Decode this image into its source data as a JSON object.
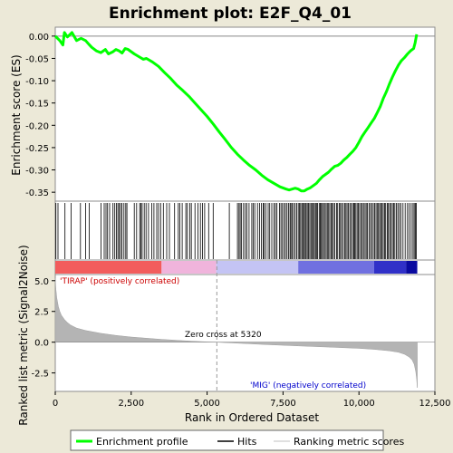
{
  "chart_data": {
    "type": "line",
    "title": "Enrichment plot: E2F_Q4_01",
    "xlabel": "Rank in Ordered Dataset",
    "ylabel_top": "Enrichment score (ES)",
    "ylabel_bottom": "Ranked list metric (Signal2Noise)",
    "x_range": [
      0,
      12500
    ],
    "x_ticks": [
      0,
      2500,
      5000,
      7500,
      10000,
      12500
    ],
    "x_tick_labels": [
      "0",
      "2,500",
      "5,000",
      "7,500",
      "10,000",
      "12,500"
    ],
    "es_ylim": [
      -0.37,
      0.02
    ],
    "es_ticks": [
      0.0,
      -0.05,
      -0.1,
      -0.15,
      -0.2,
      -0.25,
      -0.3,
      -0.35
    ],
    "es_tick_labels": [
      "0.00",
      "-0.05",
      "-0.10",
      "-0.15",
      "-0.20",
      "-0.25",
      "-0.30",
      "-0.35"
    ],
    "metric_ylim": [
      -4.0,
      5.5
    ],
    "metric_ticks": [
      5.0,
      2.5,
      0.0,
      -2.5
    ],
    "metric_tick_labels": [
      "5.0",
      "2.5",
      "0.0",
      "-2.5"
    ],
    "series": [
      {
        "name": "Enrichment profile",
        "color": "#00ff00",
        "x": [
          0,
          150,
          250,
          300,
          400,
          550,
          700,
          850,
          1000,
          1100,
          1200,
          1350,
          1500,
          1650,
          1750,
          1900,
          2000,
          2100,
          2200,
          2300,
          2400,
          2600,
          2800,
          2900,
          3000,
          3200,
          3400,
          3600,
          3800,
          4000,
          4200,
          4400,
          4600,
          4800,
          5000,
          5200,
          5400,
          5600,
          5800,
          6000,
          6200,
          6400,
          6600,
          6800,
          7000,
          7200,
          7400,
          7600,
          7700,
          7800,
          7900,
          8000,
          8100,
          8200,
          8300,
          8400,
          8500,
          8600,
          8700,
          8800,
          8900,
          9000,
          9100,
          9200,
          9300,
          9400,
          9500,
          9600,
          9700,
          9800,
          9900,
          10000,
          10100,
          10200,
          10300,
          10400,
          10500,
          10600,
          10700,
          10800,
          10900,
          11000,
          11100,
          11200,
          11300,
          11400,
          11500,
          11600,
          11700,
          11800,
          11850,
          11900
        ],
        "y": [
          0.0,
          -0.01,
          -0.02,
          0.008,
          -0.002,
          0.008,
          -0.01,
          -0.005,
          -0.01,
          -0.018,
          -0.025,
          -0.033,
          -0.037,
          -0.03,
          -0.04,
          -0.035,
          -0.03,
          -0.033,
          -0.038,
          -0.028,
          -0.03,
          -0.04,
          -0.048,
          -0.052,
          -0.05,
          -0.058,
          -0.068,
          -0.082,
          -0.095,
          -0.11,
          -0.122,
          -0.135,
          -0.15,
          -0.165,
          -0.18,
          -0.197,
          -0.215,
          -0.232,
          -0.25,
          -0.265,
          -0.278,
          -0.29,
          -0.3,
          -0.312,
          -0.322,
          -0.33,
          -0.338,
          -0.343,
          -0.345,
          -0.343,
          -0.341,
          -0.343,
          -0.347,
          -0.347,
          -0.343,
          -0.34,
          -0.335,
          -0.33,
          -0.322,
          -0.315,
          -0.31,
          -0.305,
          -0.298,
          -0.292,
          -0.29,
          -0.285,
          -0.278,
          -0.272,
          -0.265,
          -0.258,
          -0.25,
          -0.238,
          -0.225,
          -0.215,
          -0.205,
          -0.195,
          -0.185,
          -0.172,
          -0.158,
          -0.14,
          -0.125,
          -0.108,
          -0.092,
          -0.078,
          -0.065,
          -0.055,
          -0.048,
          -0.04,
          -0.033,
          -0.028,
          -0.015,
          0.004
        ]
      }
    ],
    "hits": [
      20,
      90,
      320,
      520,
      830,
      1000,
      1120,
      1510,
      1610,
      1670,
      1720,
      1790,
      1900,
      1960,
      2010,
      2060,
      2100,
      2150,
      2200,
      2260,
      2320,
      2360,
      2600,
      2680,
      2780,
      2820,
      2860,
      2930,
      2990,
      3070,
      3180,
      3250,
      3340,
      3400,
      3470,
      3560,
      3670,
      3760,
      3930,
      4050,
      4100,
      4180,
      4300,
      4350,
      4430,
      4480,
      4600,
      4700,
      4780,
      4850,
      4920,
      5050,
      5200,
      5730,
      6000,
      6050,
      6090,
      6130,
      6200,
      6260,
      6310,
      6380,
      6470,
      6520,
      6570,
      6660,
      6730,
      6790,
      6850,
      6880,
      6940,
      7010,
      7060,
      7130,
      7200,
      7250,
      7300,
      7380,
      7430,
      7480,
      7530,
      7580,
      7630,
      7680,
      7730,
      7760,
      7800,
      7850,
      7900,
      7950,
      8000,
      8040,
      8080,
      8120,
      8150,
      8190,
      8230,
      8260,
      8300,
      8340,
      8380,
      8420,
      8460,
      8500,
      8530,
      8570,
      8600,
      8640,
      8690,
      8730,
      8760,
      8800,
      8830,
      8880,
      8920,
      8960,
      9000,
      9040,
      9090,
      9120,
      9160,
      9200,
      9260,
      9300,
      9350,
      9390,
      9430,
      9480,
      9530,
      9570,
      9610,
      9650,
      9700,
      9740,
      9790,
      9830,
      9860,
      9900,
      9940,
      9980,
      10020,
      10070,
      10110,
      10150,
      10200,
      10240,
      10280,
      10330,
      10380,
      10420,
      10470,
      10520,
      10560,
      10600,
      10640,
      10680,
      10720,
      10760,
      10800,
      10840,
      10880,
      10930,
      10970,
      11010,
      11050,
      11100,
      11140,
      11180,
      11230,
      11280,
      11330,
      11380,
      11450,
      11520,
      11600,
      11660,
      11720,
      11780,
      11820,
      11860,
      11890
    ],
    "metric": {
      "x": [
        0,
        20,
        50,
        100,
        150,
        200,
        300,
        400,
        500,
        700,
        1000,
        1500,
        2000,
        2500,
        3000,
        3500,
        4000,
        4500,
        5000,
        5320,
        6000,
        7000,
        8000,
        9000,
        10000,
        10500,
        11000,
        11300,
        11500,
        11650,
        11750,
        11820,
        11870,
        11900,
        11920
      ],
      "y": [
        5.2,
        4.3,
        3.6,
        2.9,
        2.5,
        2.2,
        1.85,
        1.6,
        1.4,
        1.15,
        0.95,
        0.72,
        0.55,
        0.42,
        0.32,
        0.23,
        0.15,
        0.08,
        0.02,
        0.0,
        -0.08,
        -0.2,
        -0.3,
        -0.4,
        -0.5,
        -0.58,
        -0.7,
        -0.82,
        -0.98,
        -1.2,
        -1.45,
        -1.8,
        -2.4,
        -3.0,
        -3.7
      ]
    },
    "color_bar": {
      "segments": [
        {
          "from": 0,
          "to": 3500,
          "color": "#f25c5c"
        },
        {
          "from": 3500,
          "to": 5300,
          "color": "#f0b4dc"
        },
        {
          "from": 5300,
          "to": 8000,
          "color": "#c4c4f4"
        },
        {
          "from": 8000,
          "to": 10500,
          "color": "#7070e0"
        },
        {
          "from": 10500,
          "to": 11550,
          "color": "#3030c8"
        },
        {
          "from": 11550,
          "to": 11920,
          "color": "#0a0aa0"
        }
      ]
    },
    "annotations": {
      "positive": "'TIRAP' (positively correlated)",
      "negative": "'MIG' (negatively correlated)",
      "zero_cross": "Zero cross at 5320",
      "zero_cross_x": 5320
    },
    "legend": {
      "placement": "bottom",
      "items": [
        {
          "label": "Enrichment profile",
          "color": "#00ff00"
        },
        {
          "label": "Hits",
          "color": "#000000"
        },
        {
          "label": "Ranking metric scores",
          "color": "#c0c0c0"
        }
      ]
    }
  }
}
